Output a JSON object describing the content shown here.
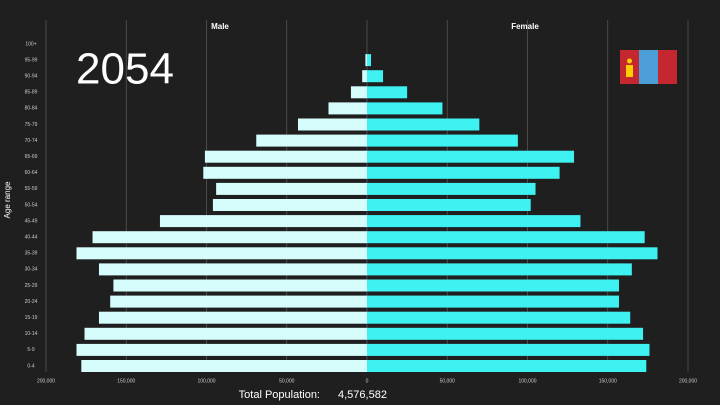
{
  "chart_data": {
    "type": "pyramid",
    "title": "2054",
    "y_label": "Age range",
    "categories": [
      "100+",
      "95-99",
      "90-94",
      "85-89",
      "80-84",
      "75-79",
      "70-74",
      "65-69",
      "60-64",
      "55-59",
      "50-54",
      "45-49",
      "40-44",
      "35-39",
      "30-34",
      "25-29",
      "20-24",
      "15-19",
      "10-14",
      "5-9",
      "0-4"
    ],
    "series": [
      {
        "name": "Male",
        "color": "#d6fcfc",
        "values": [
          0,
          1000,
          3000,
          10000,
          24000,
          43000,
          69000,
          101000,
          102000,
          94000,
          96000,
          129000,
          171000,
          181000,
          167000,
          158000,
          160000,
          167000,
          176000,
          181000,
          178000
        ]
      },
      {
        "name": "Female",
        "color": "#3ef2f2",
        "values": [
          0,
          2500,
          10000,
          25000,
          47000,
          70000,
          94000,
          129000,
          120000,
          105000,
          102000,
          133000,
          173000,
          181000,
          165000,
          157000,
          157000,
          164000,
          172000,
          176000,
          174000
        ]
      }
    ],
    "xlim": [
      0,
      200000
    ],
    "xticks": [
      0,
      {
        "value": 50000,
        "label": "50,000"
      },
      {
        "value": 100000,
        "label": "100,000"
      },
      {
        "value": 150000,
        "label": "150,000"
      },
      {
        "value": 200000,
        "label": "200,000"
      }
    ],
    "grid": true,
    "total_label": "Total Population:",
    "total_value": "4,576,582"
  }
}
